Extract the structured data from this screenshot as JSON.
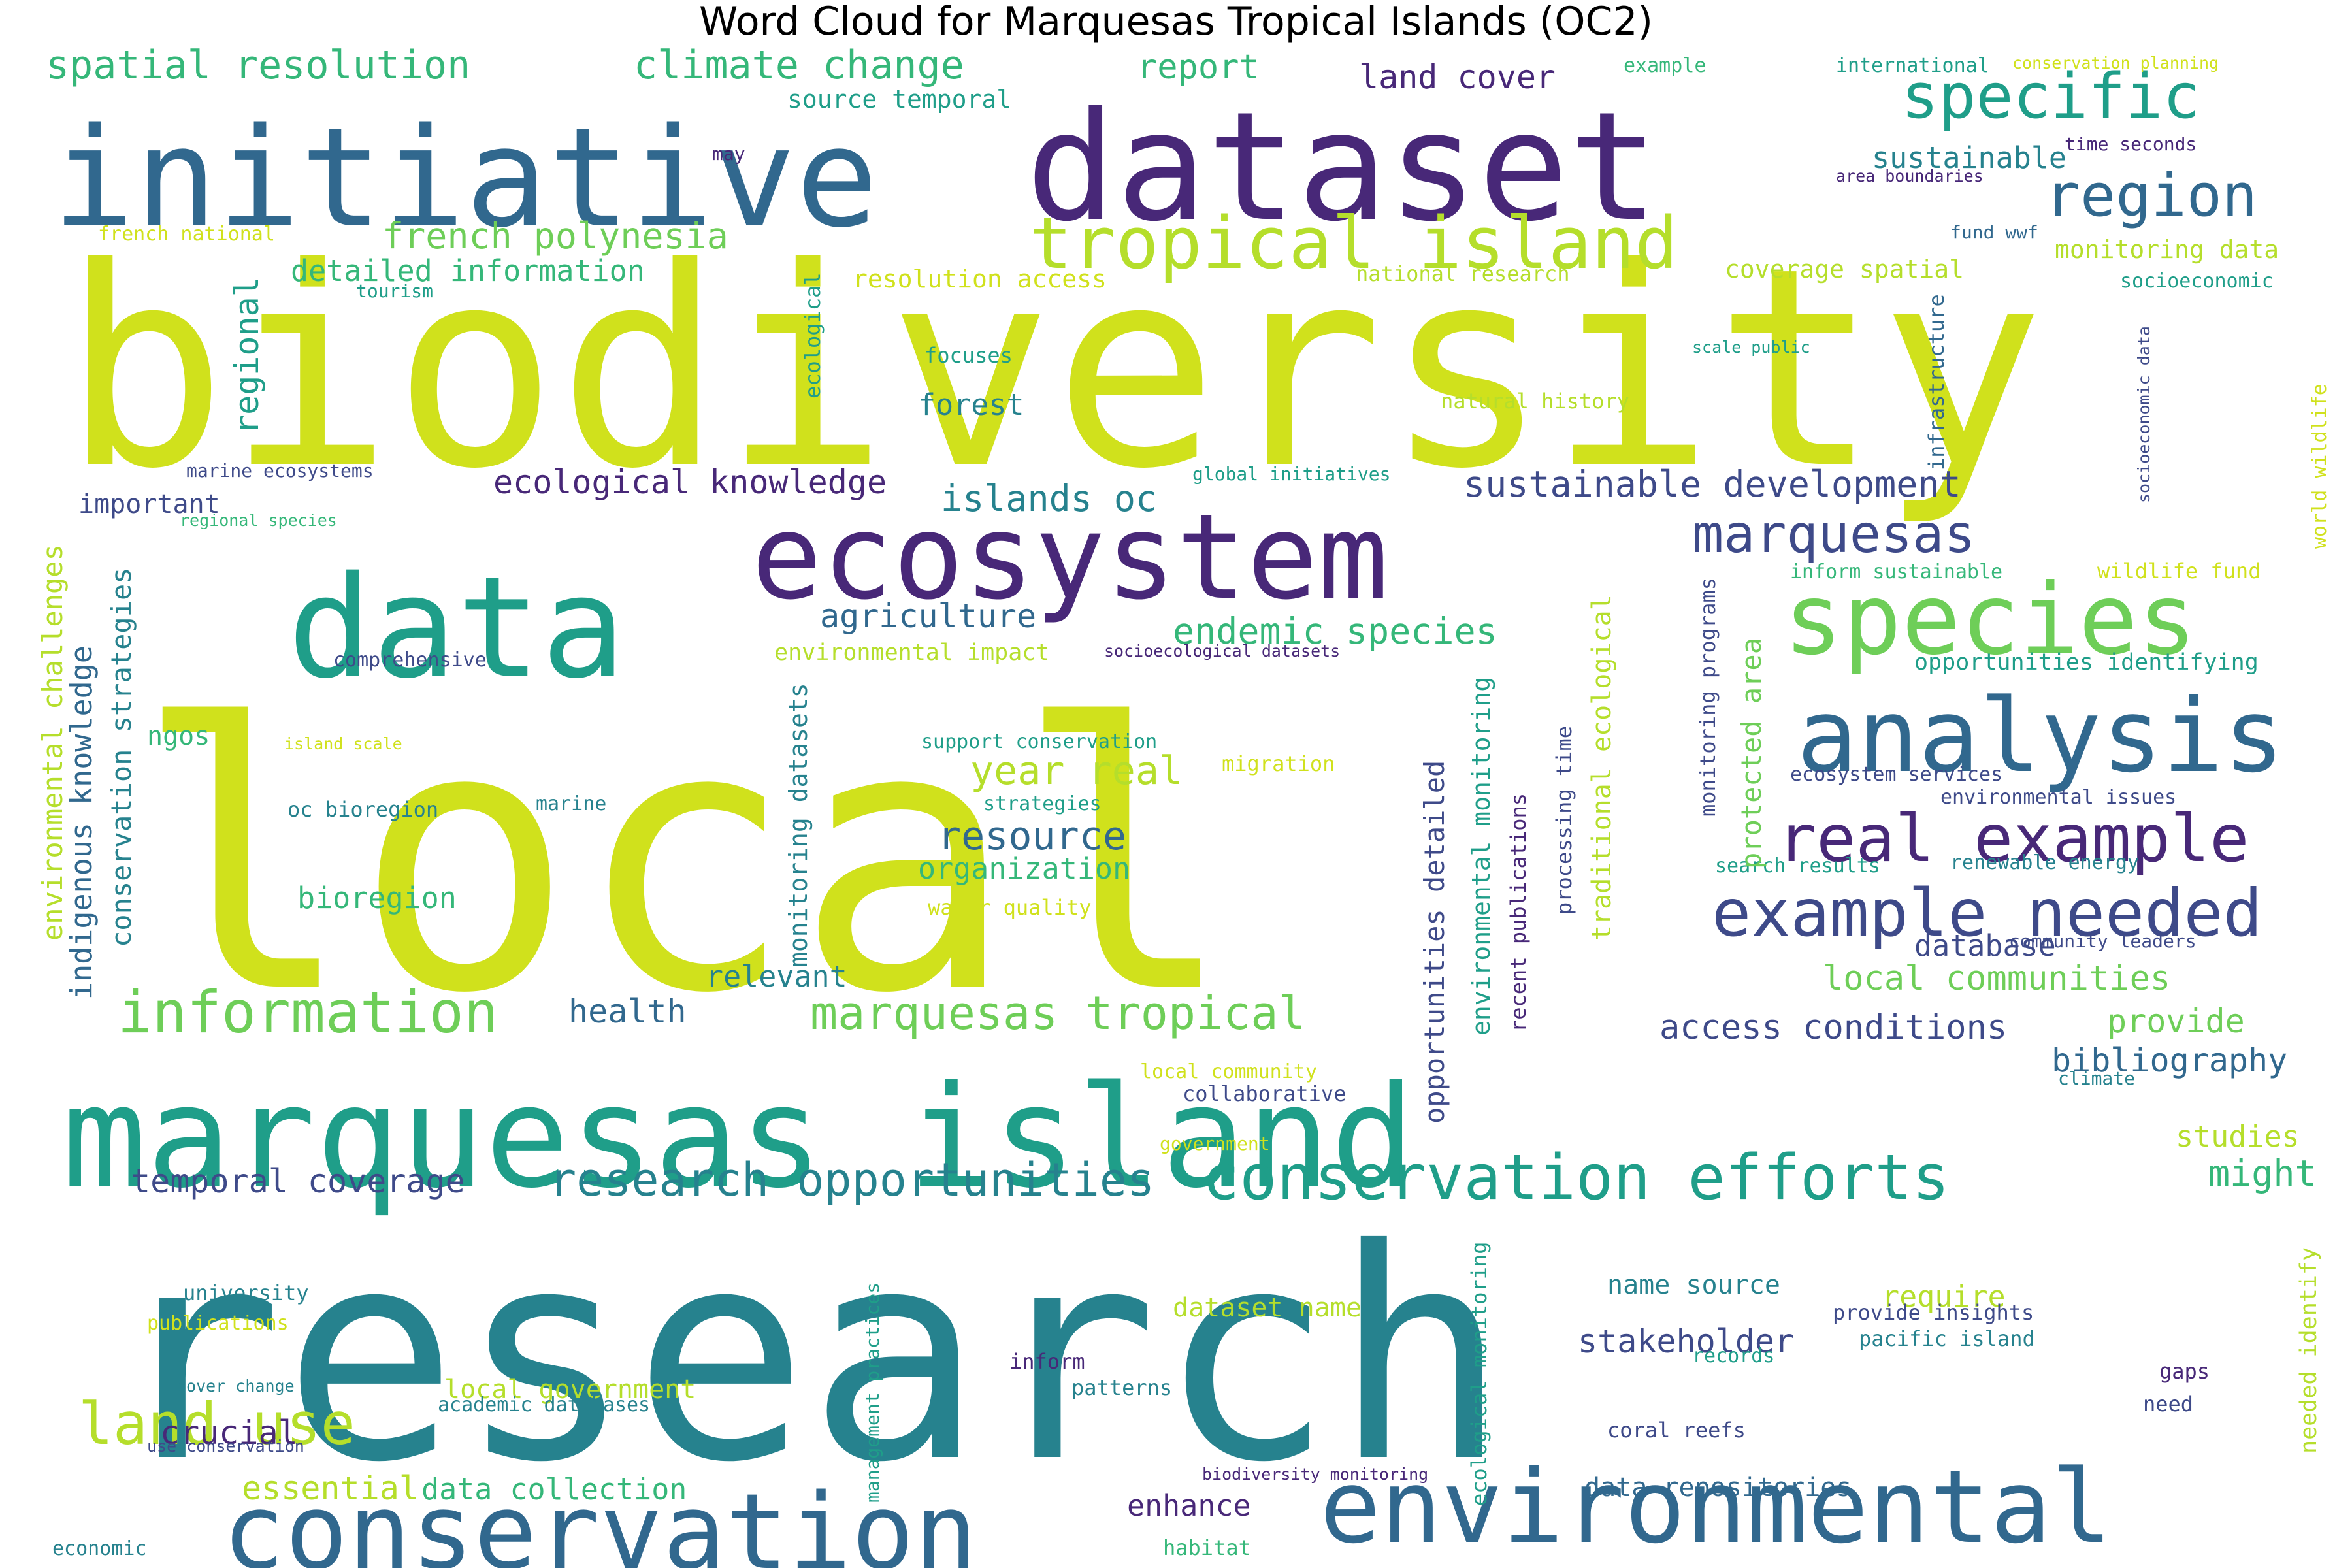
{
  "title": "Word Cloud for Marquesas Tropical Islands (OC2)",
  "colors": {
    "purple": "#482878",
    "indigo": "#3e4a89",
    "blue": "#31688e",
    "teal": "#26828e",
    "green": "#1f9e89",
    "lgreen": "#35b779",
    "lime": "#6ece58",
    "ylime": "#b5de2b",
    "yellow": "#d0e11c"
  },
  "words": [
    {
      "t": "biodiversity",
      "c": "yellow"
    },
    {
      "t": "local",
      "c": "yellow"
    },
    {
      "t": "research",
      "c": "teal"
    },
    {
      "t": "dataset",
      "c": "purple"
    },
    {
      "t": "initiative",
      "c": "blue"
    },
    {
      "t": "data",
      "c": "green"
    },
    {
      "t": "ecosystem",
      "c": "purple"
    },
    {
      "t": "marquesas island",
      "c": "green"
    },
    {
      "t": "conservation",
      "c": "blue"
    },
    {
      "t": "environmental",
      "c": "blue"
    },
    {
      "t": "species",
      "c": "lime"
    },
    {
      "t": "analysis",
      "c": "blue"
    },
    {
      "t": "tropical island",
      "c": "ylime"
    },
    {
      "t": "real example",
      "c": "purple"
    },
    {
      "t": "example needed",
      "c": "indigo"
    },
    {
      "t": "conservation efforts",
      "c": "green"
    },
    {
      "t": "information",
      "c": "lime"
    },
    {
      "t": "research opportunities",
      "c": "teal"
    },
    {
      "t": "marquesas",
      "c": "indigo"
    },
    {
      "t": "specific",
      "c": "green"
    },
    {
      "t": "region",
      "c": "blue"
    },
    {
      "t": "marquesas tropical",
      "c": "lime"
    },
    {
      "t": "land use",
      "c": "ylime"
    },
    {
      "t": "spatial resolution",
      "c": "lgreen"
    },
    {
      "t": "climate change",
      "c": "lgreen"
    },
    {
      "t": "french polynesia",
      "c": "lime"
    },
    {
      "t": "sustainable development",
      "c": "indigo"
    },
    {
      "t": "ecological knowledge",
      "c": "purple"
    },
    {
      "t": "islands oc",
      "c": "teal"
    },
    {
      "t": "endemic species",
      "c": "lgreen"
    },
    {
      "t": "year real",
      "c": "ylime"
    },
    {
      "t": "resource",
      "c": "blue"
    },
    {
      "t": "agriculture",
      "c": "blue"
    },
    {
      "t": "report",
      "c": "lgreen"
    },
    {
      "t": "land cover",
      "c": "purple"
    },
    {
      "t": "sustainable",
      "c": "teal"
    },
    {
      "t": "local communities",
      "c": "lime"
    },
    {
      "t": "access conditions",
      "c": "indigo"
    },
    {
      "t": "bibliography",
      "c": "blue"
    },
    {
      "t": "temporal coverage",
      "c": "indigo"
    },
    {
      "t": "health",
      "c": "blue"
    },
    {
      "t": "stakeholder",
      "c": "indigo"
    },
    {
      "t": "essential",
      "c": "ylime"
    },
    {
      "t": "data collection",
      "c": "lgreen"
    },
    {
      "t": "local government",
      "c": "ylime"
    },
    {
      "t": "crucial",
      "c": "purple"
    },
    {
      "t": "enhance",
      "c": "purple"
    },
    {
      "t": "database",
      "c": "indigo"
    },
    {
      "t": "provide",
      "c": "lime"
    },
    {
      "t": "studies",
      "c": "ylime"
    },
    {
      "t": "might",
      "c": "lgreen"
    },
    {
      "t": "require",
      "c": "ylime"
    },
    {
      "t": "detailed information",
      "c": "lgreen"
    },
    {
      "t": "forest",
      "c": "teal"
    },
    {
      "t": "organization",
      "c": "lgreen"
    },
    {
      "t": "bioregion",
      "c": "lgreen"
    },
    {
      "t": "relevant",
      "c": "teal"
    },
    {
      "t": "ngos",
      "c": "lgreen"
    },
    {
      "t": "important",
      "c": "indigo"
    },
    {
      "t": "data repositories",
      "c": "blue"
    },
    {
      "t": "dataset name",
      "c": "ylime"
    },
    {
      "t": "name source",
      "c": "teal"
    },
    {
      "t": "environmental impact",
      "c": "ylime"
    },
    {
      "t": "opportunities identifying",
      "c": "green"
    },
    {
      "t": "source temporal",
      "c": "green"
    },
    {
      "t": "coverage spatial",
      "c": "ylime"
    },
    {
      "t": "monitoring data",
      "c": "ylime"
    },
    {
      "t": "resolution access",
      "c": "yellow"
    },
    {
      "t": "national research",
      "c": "ylime"
    },
    {
      "t": "natural history",
      "c": "ylime"
    },
    {
      "t": "focuses",
      "c": "green"
    },
    {
      "t": "global initiatives",
      "c": "green"
    },
    {
      "t": "marine ecosystems",
      "c": "indigo"
    },
    {
      "t": "comprehensive",
      "c": "indigo"
    },
    {
      "t": "support conservation",
      "c": "green"
    },
    {
      "t": "migration",
      "c": "yellow"
    },
    {
      "t": "strategies",
      "c": "green"
    },
    {
      "t": "water quality",
      "c": "yellow"
    },
    {
      "t": "oc bioregion",
      "c": "teal"
    },
    {
      "t": "marine",
      "c": "teal"
    },
    {
      "t": "island scale",
      "c": "yellow"
    },
    {
      "t": "tourism",
      "c": "green"
    },
    {
      "t": "french national",
      "c": "yellow"
    },
    {
      "t": "regional species",
      "c": "lgreen"
    },
    {
      "t": "may",
      "c": "purple"
    },
    {
      "t": "example",
      "c": "lgreen"
    },
    {
      "t": "international",
      "c": "green"
    },
    {
      "t": "conservation planning",
      "c": "yellow"
    },
    {
      "t": "time seconds",
      "c": "purple"
    },
    {
      "t": "area boundaries",
      "c": "purple"
    },
    {
      "t": "fund wwf",
      "c": "blue"
    },
    {
      "t": "socioeconomic",
      "c": "green"
    },
    {
      "t": "scale public",
      "c": "green"
    },
    {
      "t": "inform sustainable",
      "c": "lgreen"
    },
    {
      "t": "wildlife fund",
      "c": "yellow"
    },
    {
      "t": "socioecological datasets",
      "c": "purple"
    },
    {
      "t": "ecosystem services",
      "c": "indigo"
    },
    {
      "t": "environmental issues",
      "c": "indigo"
    },
    {
      "t": "search results",
      "c": "green"
    },
    {
      "t": "renewable energy",
      "c": "teal"
    },
    {
      "t": "community leaders",
      "c": "indigo"
    },
    {
      "t": "climate",
      "c": "teal"
    },
    {
      "t": "local community",
      "c": "yellow"
    },
    {
      "t": "collaborative",
      "c": "indigo"
    },
    {
      "t": "government",
      "c": "yellow"
    },
    {
      "t": "university",
      "c": "teal"
    },
    {
      "t": "publications",
      "c": "yellow"
    },
    {
      "t": "cover change",
      "c": "teal"
    },
    {
      "t": "academic databases",
      "c": "teal"
    },
    {
      "t": "use conservation",
      "c": "indigo"
    },
    {
      "t": "economic",
      "c": "teal"
    },
    {
      "t": "habitat",
      "c": "lgreen"
    },
    {
      "t": "biodiversity monitoring",
      "c": "purple"
    },
    {
      "t": "inform",
      "c": "purple"
    },
    {
      "t": "patterns",
      "c": "teal"
    },
    {
      "t": "coral reefs",
      "c": "indigo"
    },
    {
      "t": "records",
      "c": "green"
    },
    {
      "t": "provide insights",
      "c": "indigo"
    },
    {
      "t": "pacific island",
      "c": "teal"
    },
    {
      "t": "gaps",
      "c": "purple"
    },
    {
      "t": "need",
      "c": "indigo"
    },
    {
      "t": "regional",
      "c": "green",
      "v": true
    },
    {
      "t": "ecological",
      "c": "green",
      "v": true
    },
    {
      "t": "environmental challenges",
      "c": "ylime",
      "v": true
    },
    {
      "t": "indigenous knowledge",
      "c": "blue",
      "v": true
    },
    {
      "t": "conservation strategies",
      "c": "teal",
      "v": true
    },
    {
      "t": "monitoring datasets",
      "c": "teal",
      "v": true
    },
    {
      "t": "opportunities detailed",
      "c": "indigo",
      "v": true
    },
    {
      "t": "environmental monitoring",
      "c": "green",
      "v": true
    },
    {
      "t": "recent publications",
      "c": "purple",
      "v": true
    },
    {
      "t": "processing time",
      "c": "indigo",
      "v": true
    },
    {
      "t": "traditional ecological",
      "c": "ylime",
      "v": true
    },
    {
      "t": "protected area",
      "c": "lime",
      "v": true
    },
    {
      "t": "monitoring programs",
      "c": "indigo",
      "v": true
    },
    {
      "t": "infrastructure",
      "c": "blue",
      "v": true
    },
    {
      "t": "socioeconomic data",
      "c": "indigo",
      "v": true
    },
    {
      "t": "world wildlife",
      "c": "yellow",
      "v": true
    },
    {
      "t": "management practices",
      "c": "green",
      "v": true
    },
    {
      "t": "ecological monitoring",
      "c": "green",
      "v": true
    },
    {
      "t": "needed identify",
      "c": "ylime",
      "v": true
    }
  ]
}
